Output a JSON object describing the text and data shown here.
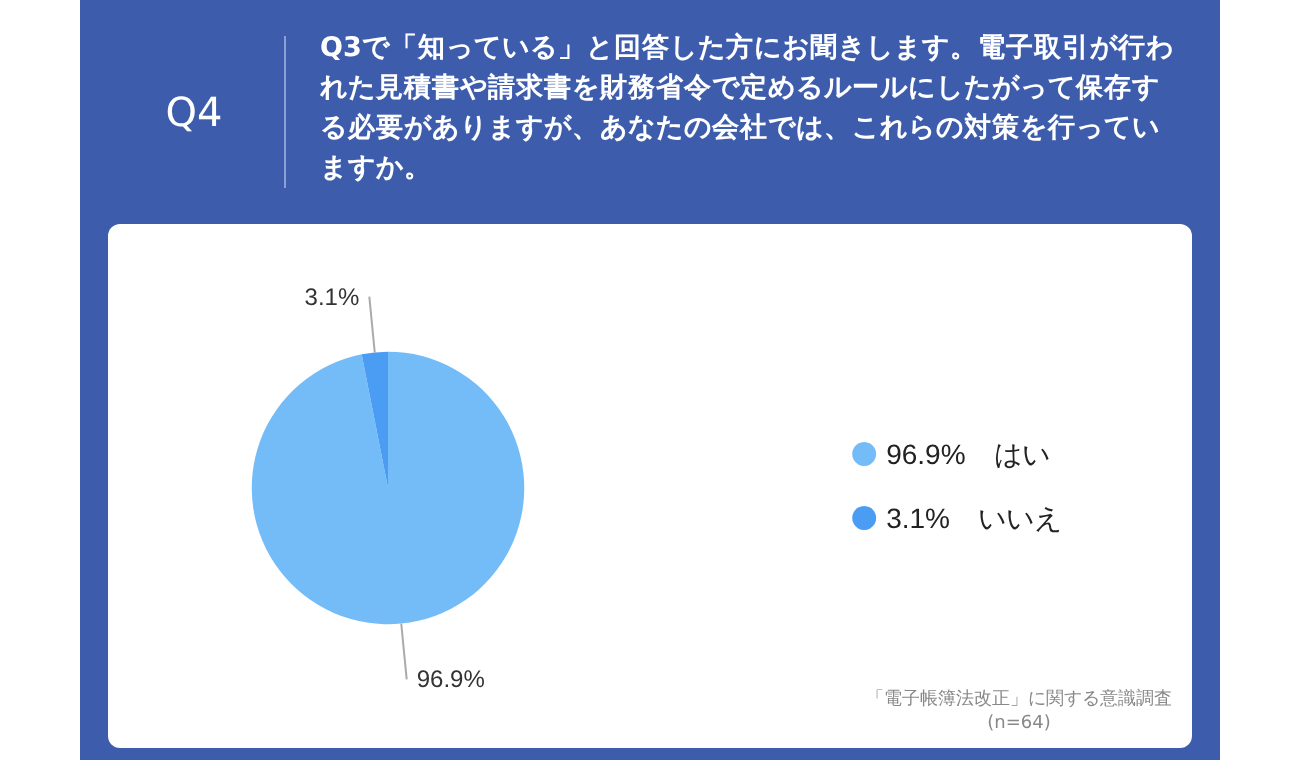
{
  "chart_data": {
    "type": "pie",
    "title": "Q4",
    "subtitle": "Q3で「知っている」と回答した方にお聞きします。電子取引が行われた見積書や請求書を財務省令で定めるルールにしたがって保存する必要がありますが、あなたの会社では、これらの対策を行っていますか。",
    "categories": [
      "はい",
      "いいえ"
    ],
    "values": [
      96.9,
      3.1
    ],
    "colors": [
      "#74bcf8",
      "#4a9df2"
    ],
    "value_labels": [
      "96.9%",
      "3.1%"
    ],
    "legend": "right",
    "annotations": [
      "「電子帳簿法改正」に関する意識調査",
      "(n=64)"
    ]
  }
}
